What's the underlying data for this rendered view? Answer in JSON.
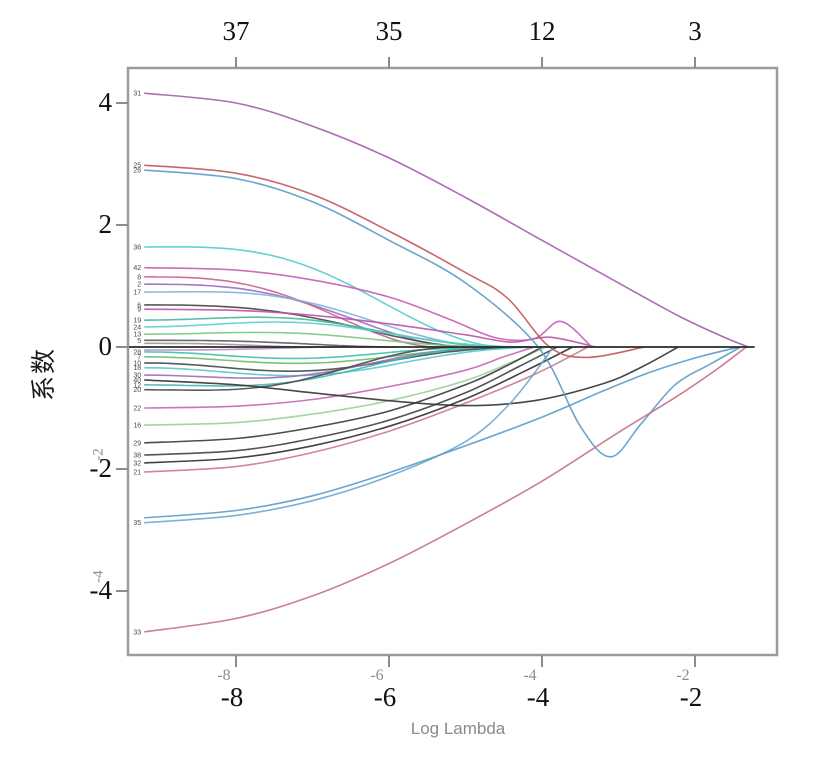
{
  "chart_data": {
    "type": "line",
    "kind": "lasso-coefficient-path",
    "title": "",
    "xlabel": "Log Lambda",
    "ylabel": "系数",
    "x_range": [
      -9.2,
      -1.0
    ],
    "y_range": [
      -5.05,
      4.6
    ],
    "x_ticks": [
      -8,
      -6,
      -4,
      -2
    ],
    "x_ticks_secondary_gray": [
      -8,
      -6,
      -4,
      -2
    ],
    "y_ticks": [
      4,
      2,
      0,
      -2,
      -4
    ],
    "y_ticks_secondary_gray": [
      -2,
      -4
    ],
    "top_axis": {
      "ticks": [
        -8,
        -6,
        -4,
        -2
      ],
      "labels": [
        "37",
        "35",
        "12",
        "3"
      ]
    },
    "grid": false,
    "legend": "none",
    "zero_line": {
      "y": 0,
      "x_end": -1.22
    },
    "colors": {
      "frame": "#9b9b9b",
      "tick": "#8c8c8c",
      "zero_line": "#2a2a2a",
      "curve_label": "#4a4a4a"
    },
    "series": [
      {
        "label": "",
        "color": "#9a9a9a",
        "start": 0.06,
        "zero_at": -7.0
      },
      {
        "label": "",
        "color": "#b08cc8",
        "start": -0.05,
        "zero_at": -6.6
      },
      {
        "label": "5",
        "color": "#5a5a5a",
        "start": 0.11,
        "zero_at": -5.9
      },
      {
        "label": "2",
        "color": "#9a6ac0",
        "start": 1.03,
        "zero_at": -5.0
      },
      {
        "label": "8",
        "color": "#c86488",
        "start": 1.15,
        "zero_at": -5.35
      },
      {
        "label": "17",
        "color": "#7fb4d8",
        "start": 0.9,
        "zero_at": -4.6,
        "bulge": 0.08
      },
      {
        "label": "6",
        "color": "#454545",
        "start": 0.69,
        "zero_at": -4.85
      },
      {
        "label": "19",
        "color": "#47b89a",
        "start": 0.44,
        "zero_at": -4.35,
        "bulge": 0.3
      },
      {
        "label": "24",
        "color": "#5ecfc6",
        "start": 0.33,
        "zero_at": -4.15,
        "bulge": 0.5
      },
      {
        "label": "13",
        "color": "#7cc87f",
        "start": 0.21,
        "zero_at": -4.5,
        "bulge": 0.35
      },
      {
        "label": "28",
        "color": "#3fbfae",
        "start": -0.08,
        "zero_at": -4.3,
        "bulge": 2.0
      },
      {
        "label": "7",
        "color": "#6abf6a",
        "start": -0.16,
        "zero_at": -4.0,
        "bulge": 1.1
      },
      {
        "label": "10",
        "color": "#3f4a4a",
        "start": -0.26,
        "zero_at": -4.05,
        "bulge": 0.9
      },
      {
        "label": "18",
        "color": "#58c8d4",
        "start": -0.34,
        "zero_at": -3.85,
        "bulge": 0.7
      },
      {
        "label": "30",
        "color": "#a06ab8",
        "start": -0.46,
        "zero_at": -4.55,
        "bulge": 0.3
      },
      {
        "label": "12",
        "color": "#44b8b0",
        "start": -0.62,
        "zero_at": -4.65,
        "bulge": 0.15
      },
      {
        "label": "20",
        "color": "#4a4a4a",
        "start": -0.7,
        "zero_at": -5.1,
        "bulge": 0.1
      },
      {
        "label": "36",
        "color": "#55cdc9",
        "start": 1.64,
        "zero_at": -4.45,
        "bulge": 0.04
      },
      {
        "label": "22",
        "color": "#c268b4",
        "start": -1.0,
        "zero_at": -4.1,
        "pts": [
          [
            -9.2,
            -1.0
          ],
          [
            -8,
            -0.97
          ],
          [
            -7,
            -0.86
          ],
          [
            -6,
            -0.65
          ],
          [
            -5,
            -0.38
          ],
          [
            -4.5,
            -0.16
          ],
          [
            -4.1,
            0
          ]
        ]
      },
      {
        "label": "16",
        "color": "#97d097",
        "start": -1.28,
        "zero_at": -3.95,
        "pts": [
          [
            -9.2,
            -1.28
          ],
          [
            -8,
            -1.24
          ],
          [
            -7,
            -1.1
          ],
          [
            -6,
            -0.88
          ],
          [
            -5,
            -0.55
          ],
          [
            -4.4,
            -0.25
          ],
          [
            -3.95,
            0
          ]
        ]
      },
      {
        "label": "29",
        "color": "#3a3a3a",
        "start": -1.57,
        "zero_at": -4.0,
        "pts": [
          [
            -9.2,
            -1.57
          ],
          [
            -8,
            -1.5
          ],
          [
            -7,
            -1.32
          ],
          [
            -6,
            -1.05
          ],
          [
            -5,
            -0.62
          ],
          [
            -4.45,
            -0.3
          ],
          [
            -4.0,
            0
          ]
        ]
      },
      {
        "label": "38",
        "color": "#404040",
        "start": -1.77,
        "zero_at": -3.8,
        "pts": [
          [
            -9.2,
            -1.77
          ],
          [
            -8,
            -1.7
          ],
          [
            -7,
            -1.5
          ],
          [
            -6,
            -1.2
          ],
          [
            -5,
            -0.75
          ],
          [
            -4.3,
            -0.32
          ],
          [
            -3.8,
            0
          ]
        ]
      },
      {
        "label": "32",
        "color": "#2f2f2f",
        "start": -1.9,
        "zero_at": -3.6,
        "pts": [
          [
            -9.2,
            -1.9
          ],
          [
            -8,
            -1.82
          ],
          [
            -7,
            -1.62
          ],
          [
            -6,
            -1.3
          ],
          [
            -5,
            -0.85
          ],
          [
            -4.2,
            -0.38
          ],
          [
            -3.6,
            0
          ]
        ]
      },
      {
        "label": "21",
        "color": "#cc7790",
        "start": -2.05,
        "zero_at": -3.4,
        "pts": [
          [
            -9.2,
            -2.05
          ],
          [
            -8,
            -1.96
          ],
          [
            -7,
            -1.73
          ],
          [
            -6,
            -1.38
          ],
          [
            -5,
            -0.92
          ],
          [
            -4.1,
            -0.45
          ],
          [
            -3.4,
            0
          ]
        ]
      },
      {
        "label": "9",
        "color": "#bb52a8",
        "start": 0.62,
        "zero_at": -3.3,
        "pts": [
          [
            -9.2,
            0.62
          ],
          [
            -8,
            0.6
          ],
          [
            -7,
            0.52
          ],
          [
            -6,
            0.38
          ],
          [
            -5,
            0.2
          ],
          [
            -4.4,
            0.08
          ],
          [
            -3.9,
            0.16
          ],
          [
            -3.3,
            0
          ]
        ]
      },
      {
        "label": "42",
        "color": "#c95cb8",
        "start": 1.3,
        "zero_at": -3.35,
        "pts": [
          [
            -9.2,
            1.3
          ],
          [
            -8,
            1.26
          ],
          [
            -7,
            1.1
          ],
          [
            -6,
            0.82
          ],
          [
            -5.2,
            0.45
          ],
          [
            -4.6,
            0.15
          ],
          [
            -4.1,
            0.14
          ],
          [
            -3.75,
            0.42
          ],
          [
            -3.35,
            0
          ]
        ]
      },
      {
        "label": "40",
        "color": "#333333",
        "start": -0.54,
        "zero_at": -2.22,
        "pts": [
          [
            -9.2,
            -0.54
          ],
          [
            -8,
            -0.62
          ],
          [
            -7,
            -0.75
          ],
          [
            -6,
            -0.88
          ],
          [
            -5,
            -0.96
          ],
          [
            -4.1,
            -0.88
          ],
          [
            -3.2,
            -0.6
          ],
          [
            -2.7,
            -0.33
          ],
          [
            -2.22,
            0
          ]
        ]
      },
      {
        "label": "35",
        "color": "#6aaad0",
        "start": -2.88,
        "zero_at": -3.85,
        "pts": [
          [
            -9.2,
            -2.88
          ],
          [
            -8,
            -2.76
          ],
          [
            -7,
            -2.52
          ],
          [
            -6,
            -2.12
          ],
          [
            -5,
            -1.55
          ],
          [
            -4.4,
            -0.9
          ],
          [
            -3.85,
            0
          ]
        ]
      },
      {
        "label": "25",
        "color": "#c0565e",
        "start": 2.98,
        "zero_at": -3.9,
        "pts": [
          [
            -9.2,
            2.98
          ],
          [
            -8,
            2.85
          ],
          [
            -7,
            2.5
          ],
          [
            -6,
            1.9
          ],
          [
            -5,
            1.22
          ],
          [
            -4.45,
            0.8
          ],
          [
            -3.9,
            0
          ],
          [
            -3.4,
            -0.17
          ],
          [
            -2.66,
            0
          ]
        ]
      },
      {
        "label": "26",
        "color": "#5b9bc8",
        "start": 2.9,
        "zero_at": -4.05,
        "pts": [
          [
            -9.2,
            2.9
          ],
          [
            -8,
            2.76
          ],
          [
            -7,
            2.38
          ],
          [
            -6,
            1.75
          ],
          [
            -5,
            1.05
          ],
          [
            -4.05,
            0
          ],
          [
            -3.5,
            -1.3
          ],
          [
            -3.1,
            -1.8
          ],
          [
            -2.7,
            -1.25
          ],
          [
            -2.26,
            -0.62
          ],
          [
            -1.8,
            -0.28
          ],
          [
            -1.4,
            0
          ]
        ]
      },
      {
        "label": "",
        "color": "#5b9bc8",
        "start": -2.8,
        "zero_at": -1.42,
        "pts": [
          [
            -9.2,
            -2.8
          ],
          [
            -8,
            -2.68
          ],
          [
            -7,
            -2.44
          ],
          [
            -6,
            -2.06
          ],
          [
            -5,
            -1.62
          ],
          [
            -4,
            -1.15
          ],
          [
            -3.2,
            -0.72
          ],
          [
            -2.6,
            -0.42
          ],
          [
            -2.0,
            -0.18
          ],
          [
            -1.42,
            0
          ]
        ]
      },
      {
        "label": "33",
        "color": "#c4708c",
        "start": -4.67,
        "zero_at": -1.33,
        "pts": [
          [
            -9.2,
            -4.67
          ],
          [
            -8,
            -4.45
          ],
          [
            -7,
            -4.08
          ],
          [
            -6,
            -3.55
          ],
          [
            -5,
            -2.9
          ],
          [
            -4,
            -2.2
          ],
          [
            -3,
            -1.4
          ],
          [
            -2.2,
            -0.78
          ],
          [
            -1.7,
            -0.35
          ],
          [
            -1.33,
            0
          ]
        ]
      },
      {
        "label": "31",
        "color": "#a55cae",
        "start": 4.16,
        "zero_at": -1.3,
        "pts": [
          [
            -9.2,
            4.16
          ],
          [
            -8,
            4.0
          ],
          [
            -7,
            3.62
          ],
          [
            -6,
            3.1
          ],
          [
            -5,
            2.45
          ],
          [
            -4,
            1.75
          ],
          [
            -3,
            1.05
          ],
          [
            -2.2,
            0.5
          ],
          [
            -1.6,
            0.15
          ],
          [
            -1.3,
            0
          ]
        ]
      }
    ]
  }
}
